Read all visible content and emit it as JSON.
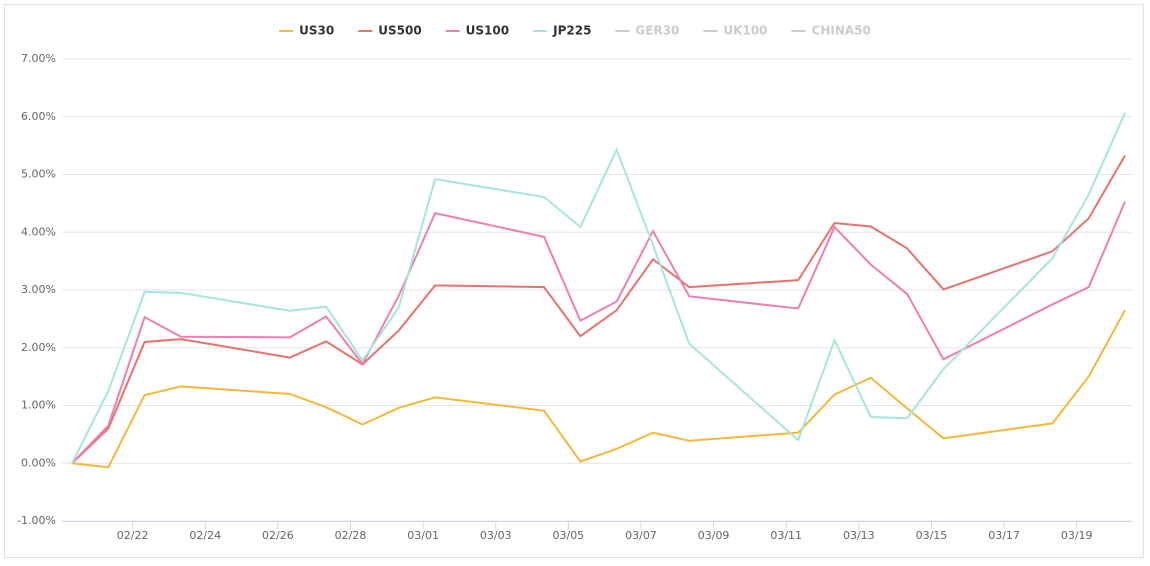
{
  "chart_data": {
    "type": "line",
    "x": [
      "02/20",
      "02/21",
      "02/22",
      "02/23",
      "02/26",
      "02/27",
      "02/28",
      "02/29",
      "03/01",
      "03/04",
      "03/05",
      "03/06",
      "03/07",
      "03/08",
      "03/11",
      "03/12",
      "03/13",
      "03/14",
      "03/15",
      "03/18",
      "03/19",
      "03/20"
    ],
    "series": [
      {
        "name": "US30",
        "color": "#f4b93a",
        "values": [
          0,
          -0.07,
          1.18,
          1.33,
          1.2,
          0.97,
          0.67,
          0.96,
          1.14,
          0.91,
          0.03,
          0.25,
          0.53,
          0.39,
          0.53,
          1.19,
          1.48,
          0.95,
          0.43,
          0.69,
          1.5,
          2.65
        ]
      },
      {
        "name": "US500",
        "color": "#e8736b",
        "values": [
          0,
          0.6,
          2.1,
          2.15,
          1.83,
          2.11,
          1.71,
          2.3,
          3.08,
          3.05,
          2.2,
          2.65,
          3.53,
          3.05,
          3.17,
          4.16,
          4.1,
          3.72,
          3.01,
          3.67,
          4.24,
          5.33
        ]
      },
      {
        "name": "US100",
        "color": "#ee7fb0",
        "values": [
          0,
          0.65,
          2.53,
          2.19,
          2.18,
          2.54,
          1.72,
          2.9,
          4.33,
          3.92,
          2.47,
          2.8,
          4.02,
          2.89,
          2.68,
          4.09,
          3.44,
          2.93,
          1.8,
          2.75,
          3.05,
          4.53
        ]
      },
      {
        "name": "JP225",
        "color": "#a6e6dd",
        "values": [
          0,
          1.25,
          2.97,
          2.95,
          2.64,
          2.71,
          1.78,
          2.7,
          4.92,
          4.61,
          4.09,
          5.43,
          3.78,
          2.07,
          0.4,
          2.13,
          0.8,
          0.78,
          1.63,
          3.55,
          4.65,
          6.07
        ]
      },
      {
        "name": "GER30",
        "color": "#cccccc",
        "visible": false
      },
      {
        "name": "UK100",
        "color": "#cccccc",
        "visible": false
      },
      {
        "name": "CHINA50",
        "color": "#cccccc",
        "visible": false
      }
    ],
    "xticks": [
      "02/22",
      "02/24",
      "02/26",
      "02/28",
      "03/01",
      "03/03",
      "03/05",
      "03/07",
      "03/09",
      "03/11",
      "03/13",
      "03/15",
      "03/17",
      "03/19"
    ],
    "xlim": [
      "02/20",
      "03/20"
    ],
    "ylim": [
      -1,
      7
    ],
    "yticks": [
      {
        "value": -1,
        "label": "-1.00%"
      },
      {
        "value": 0,
        "label": "0.00%"
      },
      {
        "value": 1,
        "label": "1.00%"
      },
      {
        "value": 2,
        "label": "2.00%"
      },
      {
        "value": 3,
        "label": "3.00%"
      },
      {
        "value": 4,
        "label": "4.00%"
      },
      {
        "value": 5,
        "label": "5.00%"
      },
      {
        "value": 6,
        "label": "6.00%"
      },
      {
        "value": 7,
        "label": "7.00%"
      }
    ],
    "grid": true,
    "legend": "top"
  }
}
